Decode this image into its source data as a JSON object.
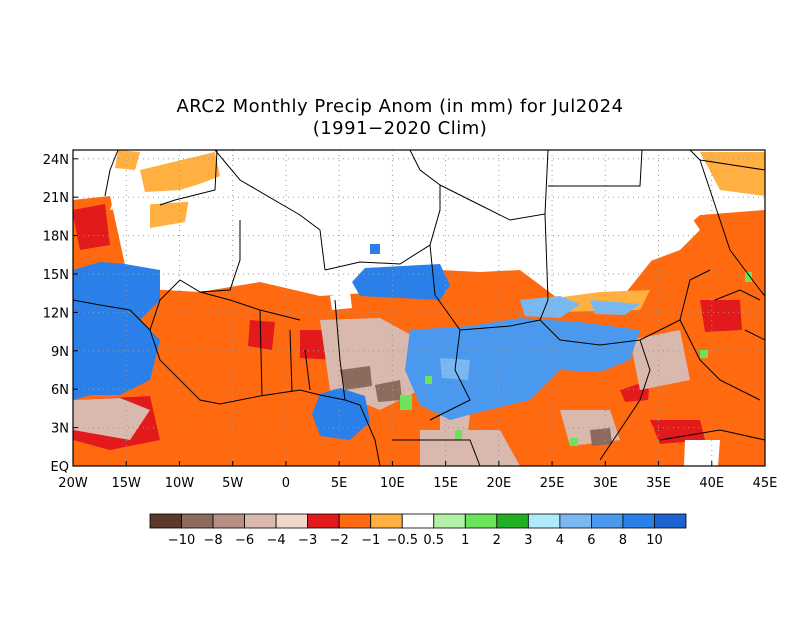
{
  "title": "ARC2 Monthly Precip Anom (in mm) for Jul2024",
  "subtitle": "(1991−2020 Clim)",
  "x_ticks": [
    "20W",
    "15W",
    "10W",
    "5W",
    "0",
    "5E",
    "10E",
    "15E",
    "20E",
    "25E",
    "30E",
    "35E",
    "40E",
    "45E"
  ],
  "y_ticks": [
    "24N",
    "21N",
    "18N",
    "15N",
    "12N",
    "9N",
    "6N",
    "3N",
    "EQ"
  ],
  "colorbar": {
    "colors": [
      "#5b3a2e",
      "#8c6a5e",
      "#b88f84",
      "#d9b8ad",
      "#f0d8cc",
      "#e31a1c",
      "#ff6a10",
      "#ffb040",
      "#ffffff",
      "#b3f0a8",
      "#6be35a",
      "#21b024",
      "#aeeaf8",
      "#7ab8f2",
      "#4b99ee",
      "#2a7fe8",
      "#1d62d2"
    ],
    "labels": [
      "−10",
      "−8",
      "−6",
      "−4",
      "−3",
      "−2",
      "−1",
      "−0.5",
      "0.5",
      "1",
      "2",
      "3",
      "4",
      "6",
      "8",
      "10"
    ]
  },
  "chart_data": {
    "type": "heatmap",
    "title": "ARC2 Monthly Precip Anom (in mm) for Jul2024",
    "subtitle": "(1991−2020 Clim)",
    "x_range": [
      "20W",
      "45E"
    ],
    "y_range": [
      "EQ",
      "25N"
    ],
    "grid": true
  }
}
